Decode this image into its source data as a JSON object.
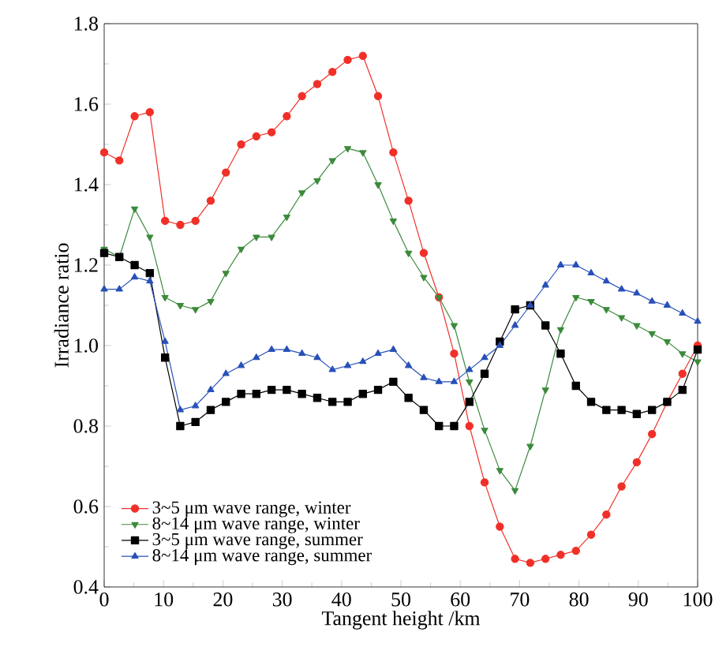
{
  "chart_data": {
    "type": "line",
    "xlabel": "Tangent height /km",
    "ylabel": "Irradiance ratio",
    "x": [
      0,
      2.56,
      5.13,
      7.69,
      10.26,
      12.82,
      15.38,
      17.95,
      20.51,
      23.08,
      25.64,
      28.21,
      30.77,
      33.33,
      35.9,
      38.46,
      41.03,
      43.59,
      46.15,
      48.72,
      51.28,
      53.85,
      56.41,
      58.97,
      61.54,
      64.1,
      66.67,
      69.23,
      71.79,
      74.36,
      76.92,
      79.49,
      82.05,
      84.62,
      87.18,
      89.74,
      92.31,
      94.87,
      97.44,
      100
    ],
    "series": [
      {
        "name": "3~5 μm wave range, winter",
        "color": "#f03028",
        "marker": "circle",
        "values": [
          1.48,
          1.46,
          1.57,
          1.58,
          1.31,
          1.3,
          1.31,
          1.36,
          1.43,
          1.5,
          1.52,
          1.53,
          1.57,
          1.62,
          1.65,
          1.68,
          1.71,
          1.72,
          1.62,
          1.48,
          1.36,
          1.23,
          1.12,
          0.98,
          0.8,
          0.66,
          0.55,
          0.47,
          0.46,
          0.47,
          0.48,
          0.49,
          0.53,
          0.58,
          0.65,
          0.71,
          0.78,
          0.86,
          0.93,
          1.0
        ]
      },
      {
        "name": "8~14 μm wave range, winter",
        "color": "#3c8a3c",
        "marker": "triangle-down",
        "values": [
          1.24,
          1.22,
          1.34,
          1.27,
          1.12,
          1.1,
          1.09,
          1.11,
          1.18,
          1.24,
          1.27,
          1.27,
          1.32,
          1.38,
          1.41,
          1.46,
          1.49,
          1.48,
          1.4,
          1.31,
          1.23,
          1.17,
          1.12,
          1.05,
          0.91,
          0.79,
          0.69,
          0.64,
          0.75,
          0.89,
          1.04,
          1.12,
          1.11,
          1.09,
          1.07,
          1.05,
          1.03,
          1.01,
          0.98,
          0.96
        ]
      },
      {
        "name": "3~5 μm wave range, summer",
        "color": "#000000",
        "marker": "square",
        "values": [
          1.23,
          1.22,
          1.2,
          1.18,
          0.97,
          0.8,
          0.81,
          0.84,
          0.86,
          0.88,
          0.88,
          0.89,
          0.89,
          0.88,
          0.87,
          0.86,
          0.86,
          0.88,
          0.89,
          0.91,
          0.87,
          0.84,
          0.8,
          0.8,
          0.86,
          0.93,
          1.01,
          1.09,
          1.1,
          1.05,
          0.98,
          0.9,
          0.86,
          0.84,
          0.84,
          0.83,
          0.84,
          0.86,
          0.89,
          0.99
        ]
      },
      {
        "name": "8~14 μm wave range, summer",
        "color": "#2850b8",
        "marker": "triangle",
        "values": [
          1.14,
          1.14,
          1.17,
          1.16,
          1.01,
          0.84,
          0.85,
          0.89,
          0.93,
          0.95,
          0.97,
          0.99,
          0.99,
          0.98,
          0.97,
          0.94,
          0.95,
          0.96,
          0.98,
          0.99,
          0.95,
          0.92,
          0.91,
          0.91,
          0.94,
          0.97,
          1.0,
          1.05,
          1.1,
          1.15,
          1.2,
          1.2,
          1.18,
          1.16,
          1.14,
          1.13,
          1.11,
          1.1,
          1.08,
          1.06
        ]
      }
    ],
    "xlim": [
      0,
      100
    ],
    "ylim": [
      0.4,
      1.8
    ],
    "xticks": [
      0,
      10,
      20,
      30,
      40,
      50,
      60,
      70,
      80,
      90,
      100
    ],
    "yticks": [
      {
        "value": 0.4,
        "label": "0.4"
      },
      {
        "value": 0.6,
        "label": "0.6"
      },
      {
        "value": 0.8,
        "label": "0.8"
      },
      {
        "value": 1.0,
        "label": "1.0"
      },
      {
        "value": 1.2,
        "label": "1.2"
      },
      {
        "value": 1.4,
        "label": "1.4"
      },
      {
        "value": 1.6,
        "label": "1.6"
      },
      {
        "value": 1.8,
        "label": "1.8"
      }
    ],
    "legend": "bottom left",
    "grid": false,
    "line_style": "solid"
  }
}
